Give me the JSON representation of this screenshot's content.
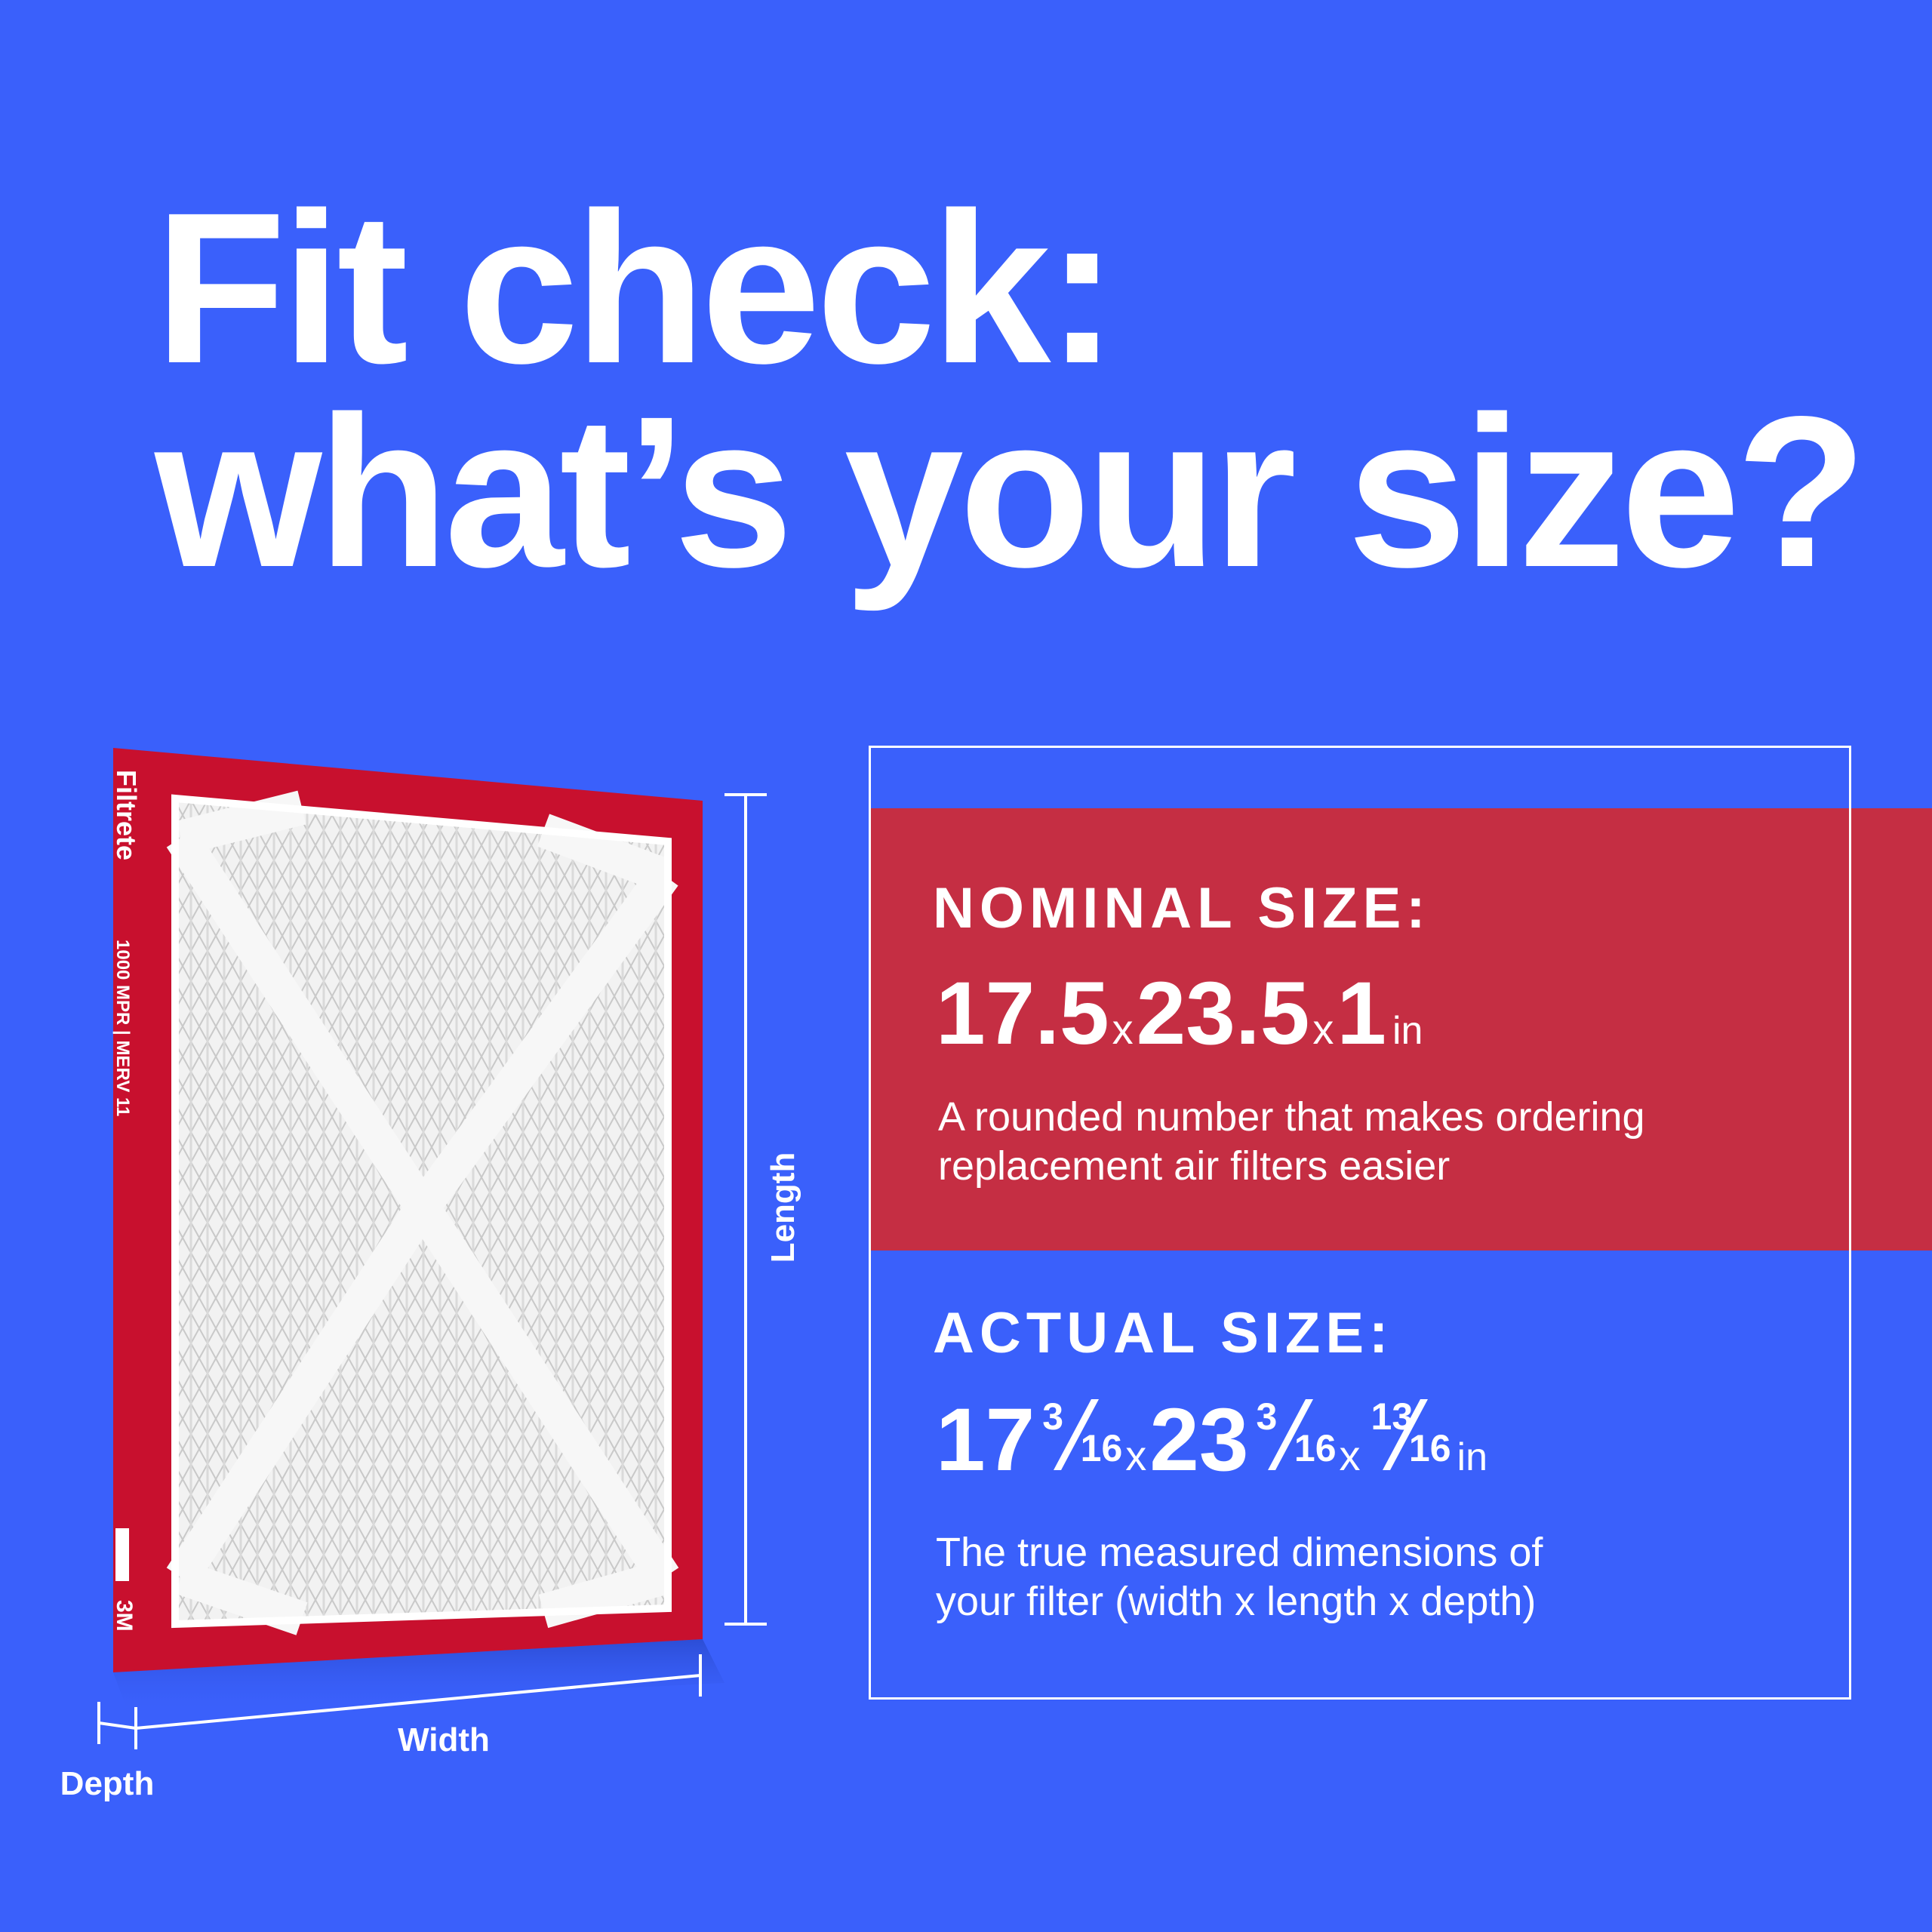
{
  "title": {
    "line1": "Fit check:",
    "line2": "what’s your size?"
  },
  "filter": {
    "brand": "Filtrete",
    "rating": "1000 MPR | MERV 11",
    "maker": "3M"
  },
  "dimensions": {
    "length": "Length",
    "width": "Width",
    "depth": "Depth"
  },
  "nominal": {
    "heading": "NOMINAL SIZE:",
    "size": {
      "dims": [
        "17.5",
        "23.5",
        "1"
      ],
      "separator": "x",
      "unit": "in"
    },
    "description": [
      "A rounded number that makes ordering",
      "replacement air filters easier"
    ]
  },
  "actual": {
    "heading": "ACTUAL SIZE:",
    "size": {
      "dims": [
        {
          "whole": "17",
          "num": "3",
          "den": "16"
        },
        {
          "whole": "23",
          "num": "3",
          "den": "16"
        },
        {
          "num": "13",
          "den": "16"
        }
      ],
      "separator": "x",
      "unit": "in"
    },
    "description": [
      "The true measured dimensions of",
      "your filter (width x length x depth)"
    ]
  }
}
